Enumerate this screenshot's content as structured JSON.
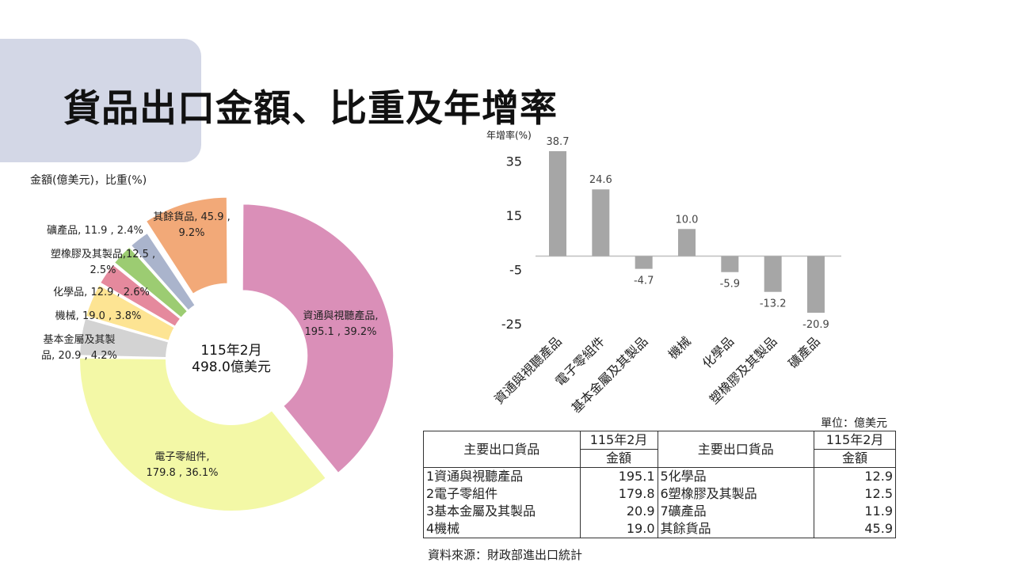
{
  "title": "貨品出口金額、比重及年增率",
  "chart_data": [
    {
      "type": "pie",
      "subtype": "donut",
      "unit_label": "金額(億美元)，比重(%)",
      "center_line1": "115年2月",
      "center_line2": "498.0億美元",
      "slices": [
        {
          "name": "資通與視聽產品",
          "value": 195.1,
          "percent": 39.2,
          "label_line1": "資通與視聽產品,",
          "label_line2": "195.1 , 39.2%",
          "color": "#da8fb8",
          "exploded": true
        },
        {
          "name": "電子零組件",
          "value": 179.8,
          "percent": 36.1,
          "label_line1": "電子零組件,",
          "label_line2": "179.8 , 36.1%",
          "color": "#f3f8a6",
          "exploded": false
        },
        {
          "name": "基本金屬及其製品",
          "value": 20.9,
          "percent": 4.2,
          "label_line1": "基本金屬及其製",
          "label_line2": "品, 20.9 , 4.2%",
          "color": "#d3d3d3",
          "exploded": false
        },
        {
          "name": "機械",
          "value": 19.0,
          "percent": 3.8,
          "label_line1": "機械, 19.0 , 3.8%",
          "label_line2": "",
          "color": "#fde493",
          "exploded": false
        },
        {
          "name": "化學品",
          "value": 12.9,
          "percent": 2.6,
          "label_line1": "化學品, 12.9 , 2.6%",
          "label_line2": "",
          "color": "#e5899d",
          "exploded": false
        },
        {
          "name": "塑橡膠及其製品",
          "value": 12.5,
          "percent": 2.5,
          "label_line1": "塑橡膠及其製品,12.5 ,",
          "label_line2": "2.5%",
          "color": "#9ccc72",
          "exploded": false
        },
        {
          "name": "礦產品",
          "value": 11.9,
          "percent": 2.4,
          "label_line1": "礦產品, 11.9 , 2.4%",
          "label_line2": "",
          "color": "#aab4cc",
          "exploded": false
        },
        {
          "name": "其餘貨品",
          "value": 45.9,
          "percent": 9.2,
          "label_line1": "其餘貨品, 45.9 ,",
          "label_line2": "9.2%",
          "color": "#f2a978",
          "exploded": true
        }
      ]
    },
    {
      "type": "bar",
      "ylabel": "年增率(%)",
      "categories": [
        "資通與視聽產品",
        "電子零組件",
        "基本金屬及其製品",
        "機械",
        "化學品",
        "塑橡膠及其製品",
        "礦產品"
      ],
      "values": [
        38.7,
        24.6,
        -4.7,
        10.0,
        -5.9,
        -13.2,
        -20.9
      ],
      "value_labels": [
        "38.7",
        "24.6",
        "-4.7",
        "10.0",
        "-5.9",
        "-13.2",
        "-20.9"
      ],
      "yticks": [
        35,
        15,
        -5,
        -25
      ],
      "ylim": [
        -25,
        38.7
      ],
      "bar_color": "#a6a6a6",
      "grid": false
    }
  ],
  "table": {
    "unit": "單位：億美元",
    "col_header_item": "主要出口貨品",
    "col_header_period": "115年2月",
    "col_header_amount": "金額",
    "left_rows": [
      {
        "item": "1資通與視聽產品",
        "amount": "195.1"
      },
      {
        "item": "2電子零組件",
        "amount": "179.8"
      },
      {
        "item": "3基本金屬及其製品",
        "amount": "20.9"
      },
      {
        "item": "4機械",
        "amount": "19.0"
      }
    ],
    "right_rows": [
      {
        "item": "5化學品",
        "amount": "12.9"
      },
      {
        "item": "6塑橡膠及其製品",
        "amount": "12.5"
      },
      {
        "item": "7礦產品",
        "amount": "11.9"
      },
      {
        "item": "其餘貨品",
        "amount": "45.9"
      }
    ]
  },
  "source": "資料來源：財政部進出口統計"
}
